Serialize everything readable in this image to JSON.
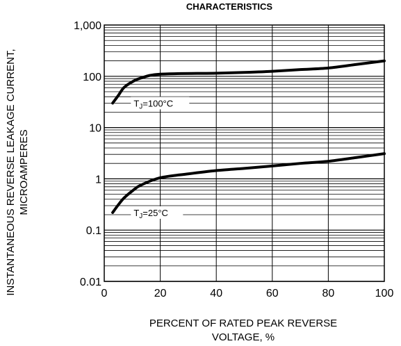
{
  "chart_data": {
    "type": "line",
    "title": "CHARACTERISTICS",
    "xlabel_lines": [
      "PERCENT OF RATED PEAK REVERSE",
      "VOLTAGE, %"
    ],
    "ylabel_lines": [
      "INSTANTANEOUS REVERSE LEAKAGE CURRENT,",
      "MICROAMPERES"
    ],
    "xlim": [
      0,
      100
    ],
    "ylim": [
      0.01,
      1000
    ],
    "yscale": "log",
    "grid": true,
    "x_ticks": [
      "0",
      "20",
      "40",
      "60",
      "80",
      "100"
    ],
    "y_ticks": [
      "0.01",
      "0.1",
      "1",
      "10",
      "100",
      "1,000"
    ],
    "series": [
      {
        "name": "TJ=100°C",
        "label_main": "T",
        "label_sub": "J",
        "label_rest": "=100°C",
        "points": [
          [
            3,
            30
          ],
          [
            5,
            42
          ],
          [
            7,
            60
          ],
          [
            10,
            78
          ],
          [
            13,
            92
          ],
          [
            20,
            110
          ],
          [
            40,
            115
          ],
          [
            52,
            120
          ],
          [
            60,
            125
          ],
          [
            70,
            135
          ],
          [
            80,
            145
          ],
          [
            90,
            170
          ],
          [
            100,
            200
          ]
        ]
      },
      {
        "name": "TJ=25°C",
        "label_main": "T",
        "label_sub": "J",
        "label_rest": "=25°C",
        "points": [
          [
            3,
            0.22
          ],
          [
            5,
            0.31
          ],
          [
            7,
            0.42
          ],
          [
            10,
            0.58
          ],
          [
            13,
            0.75
          ],
          [
            20,
            1.05
          ],
          [
            30,
            1.25
          ],
          [
            40,
            1.45
          ],
          [
            50,
            1.6
          ],
          [
            60,
            1.78
          ],
          [
            70,
            2.0
          ],
          [
            80,
            2.2
          ],
          [
            90,
            2.6
          ],
          [
            100,
            3.1
          ]
        ]
      }
    ]
  }
}
